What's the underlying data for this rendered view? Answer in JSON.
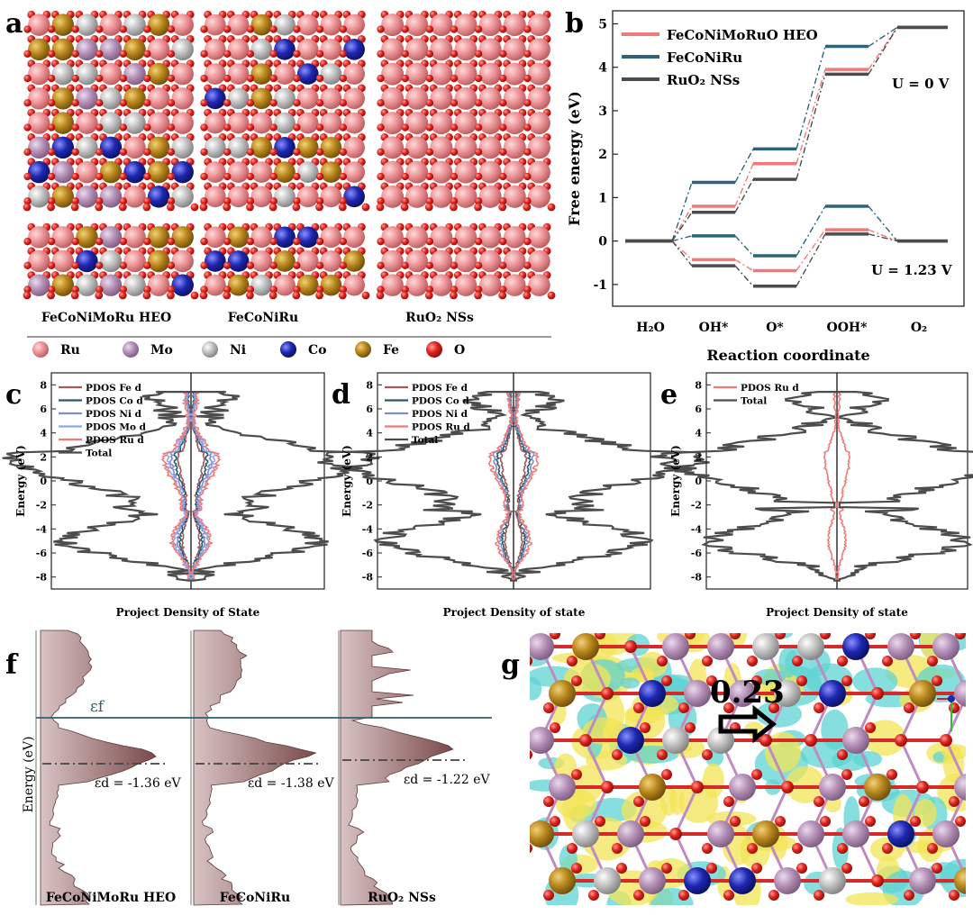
{
  "panel_letters": [
    "a",
    "b",
    "c",
    "d",
    "e",
    "f",
    "g"
  ],
  "panel_a": {
    "labels": [
      "FeCoNiMoRu HEO",
      "FeCoNiRu",
      "RuO₂ NSs"
    ],
    "legend": [
      {
        "name": "Ru",
        "color": "#e98e92"
      },
      {
        "name": "Mo",
        "color": "#b58fb6"
      },
      {
        "name": "Ni",
        "color": "#b8b8b8"
      },
      {
        "name": "Co",
        "color": "#1c25a6"
      },
      {
        "name": "Fe",
        "color": "#b5841b"
      },
      {
        "name": "O",
        "color": "#e0201c"
      }
    ]
  },
  "chart_data": [
    {
      "panel": "b",
      "type": "line",
      "title": "",
      "xlabel": "Reaction coordinate",
      "ylabel": "Free energy (eV)",
      "categories": [
        "H₂O",
        "OH*",
        "O*",
        "OOH*",
        "O₂"
      ],
      "yticks": [
        "-1",
        "0",
        "1",
        "2",
        "3",
        "4",
        "5"
      ],
      "ylim": [
        -1.5,
        5.3
      ],
      "annotations": [
        "U = 0 V",
        "U = 1.23 V"
      ],
      "series": [
        {
          "name": "FeCoNiMoRuO HEO",
          "color": "#ef7a7a",
          "u0": [
            0,
            0.8,
            1.78,
            3.95,
            4.92
          ],
          "u123": [
            0,
            -0.43,
            -0.68,
            0.26,
            0
          ]
        },
        {
          "name": "FeCoNiRu",
          "color": "#2d6479",
          "u0": [
            0,
            1.35,
            2.12,
            4.48,
            4.92
          ],
          "u123": [
            0,
            0.12,
            -0.34,
            0.8,
            0
          ]
        },
        {
          "name": "RuO₂ NSs",
          "color": "#4c4c4c",
          "u0": [
            0,
            0.66,
            1.42,
            3.84,
            4.92
          ],
          "u123": [
            0,
            -0.57,
            -1.04,
            0.16,
            0
          ]
        }
      ]
    },
    {
      "panel": "c",
      "type": "line",
      "xlabel": "Project Density of State",
      "ylabel": "Energy (eV)",
      "yticks": [
        "-8",
        "-6",
        "-4",
        "-2",
        "0",
        "2",
        "4",
        "6",
        "8"
      ],
      "ylim": [
        -9,
        9
      ],
      "legend": [
        {
          "name": "PDOS Fe d",
          "color": "#a05a5a"
        },
        {
          "name": "PDOS Co d",
          "color": "#2b5a6a"
        },
        {
          "name": "PDOS Ni d",
          "color": "#7d8fc6"
        },
        {
          "name": "PDOS Mo d",
          "color": "#8aa8f0"
        },
        {
          "name": "PDOS Ru d",
          "color": "#ef7a7a"
        },
        {
          "name": "Total",
          "color": "#4c4c4c"
        }
      ]
    },
    {
      "panel": "d",
      "type": "line",
      "xlabel": "Project Density of state",
      "ylabel": "Energy (eV)",
      "yticks": [
        "-8",
        "-6",
        "-4",
        "-2",
        "0",
        "2",
        "4",
        "6",
        "8"
      ],
      "ylim": [
        -9,
        9
      ],
      "legend": [
        {
          "name": "PDOS Fe d",
          "color": "#a05a5a"
        },
        {
          "name": "PDOS Co d",
          "color": "#2b5a6a"
        },
        {
          "name": "PDOS Ni d",
          "color": "#7d8fc6"
        },
        {
          "name": "PDOS Ru d",
          "color": "#ef7a7a"
        },
        {
          "name": "Total",
          "color": "#4c4c4c"
        }
      ]
    },
    {
      "panel": "e",
      "type": "line",
      "xlabel": "Project Density of state",
      "ylabel": "Energy (eV)",
      "yticks": [
        "-8",
        "-6",
        "-4",
        "-2",
        "0",
        "2",
        "4",
        "6",
        "8"
      ],
      "ylim": [
        -9,
        9
      ],
      "legend": [
        {
          "name": "PDOS Ru d",
          "color": "#ef7a7a"
        },
        {
          "name": "Total",
          "color": "#4c4c4c"
        }
      ]
    },
    {
      "panel": "f",
      "type": "area",
      "ylabel": "Energy (eV)",
      "fermi_label": "εf",
      "columns": [
        {
          "name": "FeCoNiMoRu HEO",
          "d_band": "εd = -1.36 eV"
        },
        {
          "name": "FeCoNiRu",
          "d_band": "εd = -1.38 eV"
        },
        {
          "name": "RuO₂ NSs",
          "d_band": "εd = -1.22 eV"
        }
      ]
    }
  ],
  "panel_g": {
    "charge_value": "0.23"
  }
}
